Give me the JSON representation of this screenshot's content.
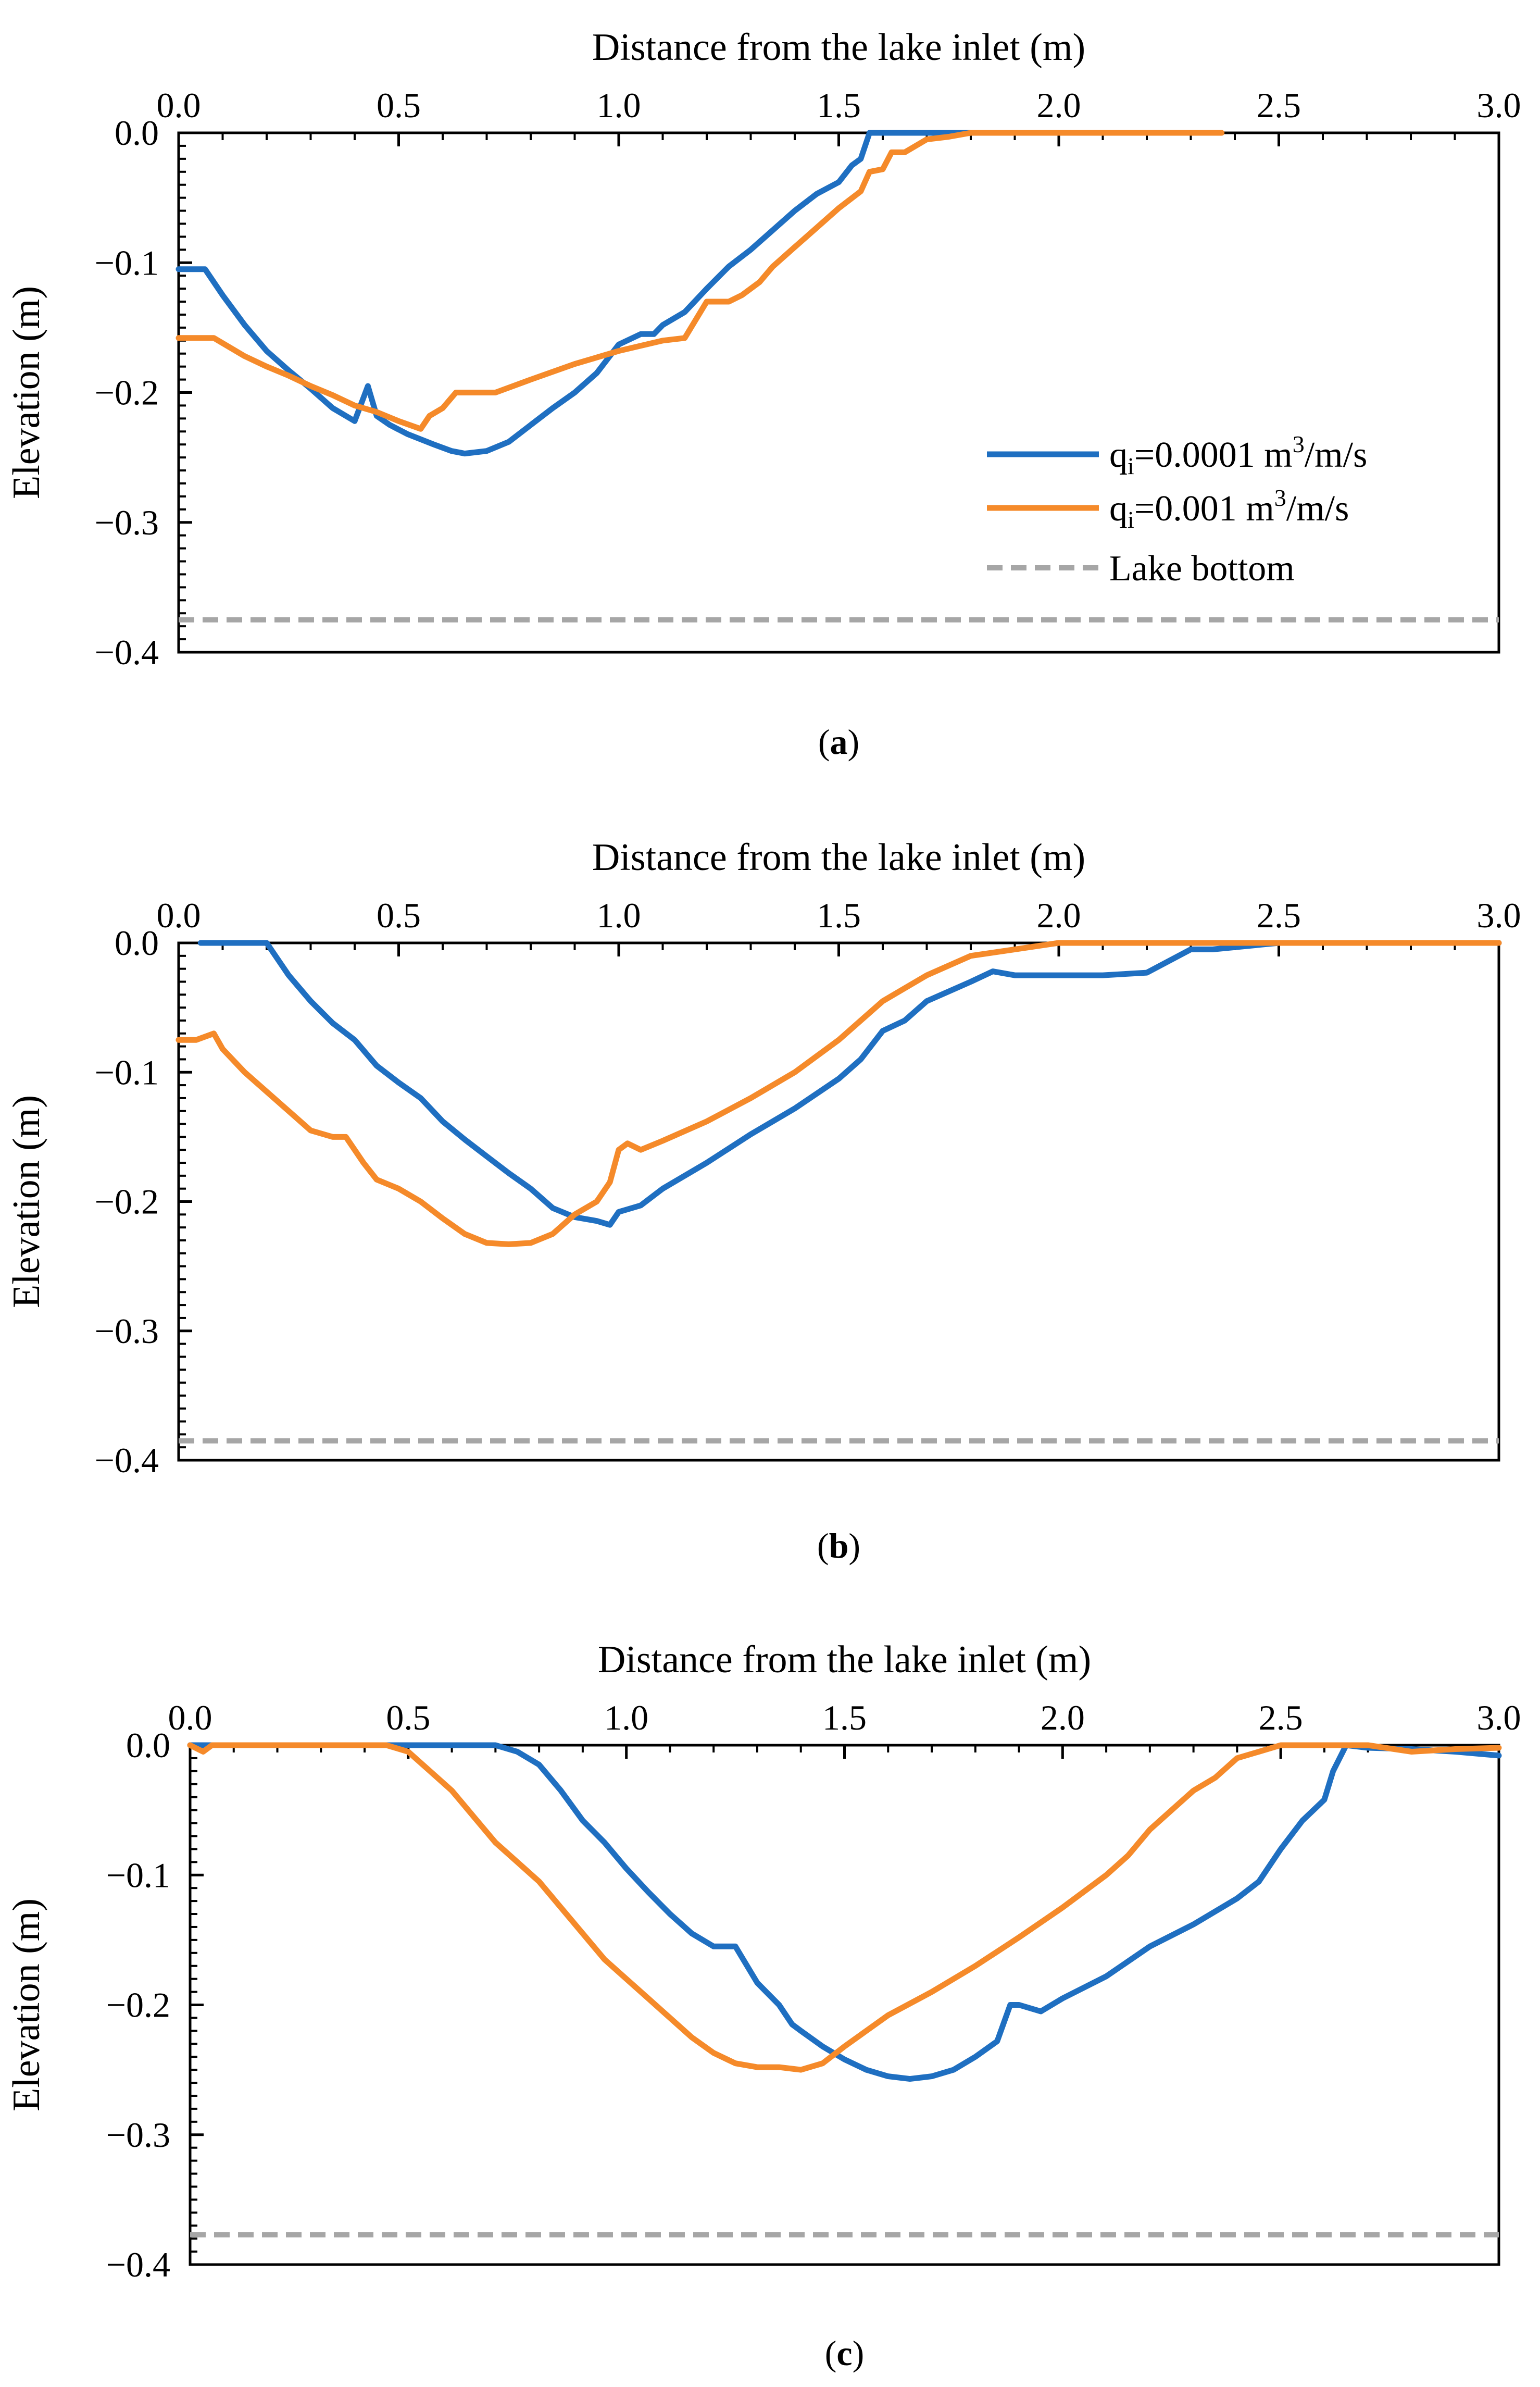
{
  "colors": {
    "series_blue": "#1f6fc1",
    "series_orange": "#f58a2a",
    "lake_bottom": "#a6a6a6",
    "axis": "#000000"
  },
  "chart_data": [
    {
      "type": "line",
      "panel_label": "a",
      "xlabel": "Distance from the lake inlet (m)",
      "ylabel": "Elevation (m)",
      "xlim": [
        0,
        3.0
      ],
      "ylim": [
        -0.4,
        0.0
      ],
      "x_ticks": [
        "0.0",
        "0.5",
        "1.0",
        "1.5",
        "2.0",
        "2.5",
        "3.0"
      ],
      "y_ticks": [
        "0.0",
        "-0.1",
        "-0.2",
        "-0.3",
        "-0.4"
      ],
      "x_axis_position": "top",
      "grid": false,
      "legend": {
        "position": "right",
        "entries": [
          {
            "sym": "q",
            "sub": "i",
            "text": "=0.0001 m",
            "sup": "3",
            "tail": "/m/s",
            "color_key": "series_blue",
            "dash": false
          },
          {
            "sym": "q",
            "sub": "i",
            "text": "=0.001 m",
            "sup": "3",
            "tail": "/m/s",
            "color_key": "series_orange",
            "dash": false
          },
          {
            "text": "Lake bottom",
            "color_key": "lake_bottom",
            "dash": true
          }
        ]
      },
      "series": [
        {
          "color_key": "series_blue",
          "x": [
            0.0,
            0.06,
            0.1,
            0.15,
            0.2,
            0.25,
            0.3,
            0.35,
            0.4,
            0.43,
            0.45,
            0.48,
            0.52,
            0.58,
            0.62,
            0.65,
            0.7,
            0.75,
            0.8,
            0.85,
            0.9,
            0.95,
            1.0,
            1.05,
            1.08,
            1.1,
            1.15,
            1.2,
            1.25,
            1.3,
            1.35,
            1.4,
            1.45,
            1.5,
            1.53,
            1.55,
            1.57,
            1.6,
            1.7,
            1.8
          ],
          "y": [
            -0.105,
            -0.105,
            -0.125,
            -0.148,
            -0.168,
            -0.183,
            -0.197,
            -0.212,
            -0.222,
            -0.195,
            -0.218,
            -0.225,
            -0.232,
            -0.24,
            -0.245,
            -0.247,
            -0.245,
            -0.238,
            -0.225,
            -0.212,
            -0.2,
            -0.185,
            -0.163,
            -0.155,
            -0.155,
            -0.148,
            -0.138,
            -0.12,
            -0.103,
            -0.09,
            -0.075,
            -0.06,
            -0.047,
            -0.038,
            -0.025,
            -0.02,
            0.0,
            0.0,
            0.0,
            0.0
          ]
        },
        {
          "color_key": "series_orange",
          "x": [
            0.0,
            0.08,
            0.15,
            0.2,
            0.25,
            0.3,
            0.35,
            0.4,
            0.45,
            0.5,
            0.55,
            0.57,
            0.6,
            0.63,
            0.68,
            0.72,
            0.8,
            0.9,
            1.0,
            1.1,
            1.15,
            1.2,
            1.25,
            1.28,
            1.32,
            1.35,
            1.4,
            1.45,
            1.5,
            1.55,
            1.57,
            1.6,
            1.62,
            1.65,
            1.7,
            1.75,
            1.8,
            2.2,
            2.35,
            2.37
          ],
          "y": [
            -0.158,
            -0.158,
            -0.172,
            -0.18,
            -0.187,
            -0.195,
            -0.202,
            -0.21,
            -0.215,
            -0.222,
            -0.228,
            -0.218,
            -0.212,
            -0.2,
            -0.2,
            -0.2,
            -0.19,
            -0.178,
            -0.168,
            -0.16,
            -0.158,
            -0.13,
            -0.13,
            -0.125,
            -0.115,
            -0.103,
            -0.088,
            -0.073,
            -0.058,
            -0.045,
            -0.03,
            -0.028,
            -0.015,
            -0.015,
            -0.005,
            -0.003,
            0.0,
            0.0,
            0.0,
            0.0
          ]
        },
        {
          "color_key": "lake_bottom",
          "x": [
            0.0,
            3.0
          ],
          "y": [
            -0.375,
            -0.375
          ]
        }
      ]
    },
    {
      "type": "line",
      "panel_label": "b",
      "xlabel": "Distance from the lake inlet (m)",
      "ylabel": "Elevation (m)",
      "xlim": [
        0,
        3.0
      ],
      "ylim": [
        -0.4,
        0.0
      ],
      "x_ticks": [
        "0.0",
        "0.5",
        "1.0",
        "1.5",
        "2.0",
        "2.5",
        "3.0"
      ],
      "y_ticks": [
        "0.0",
        "-0.1",
        "-0.2",
        "-0.3",
        "-0.4"
      ],
      "x_axis_position": "top",
      "grid": false,
      "series": [
        {
          "color_key": "series_blue",
          "x": [
            0.05,
            0.1,
            0.2,
            0.22,
            0.25,
            0.3,
            0.35,
            0.4,
            0.45,
            0.5,
            0.55,
            0.6,
            0.65,
            0.7,
            0.75,
            0.8,
            0.85,
            0.9,
            0.95,
            0.98,
            1.0,
            1.05,
            1.1,
            1.2,
            1.3,
            1.4,
            1.5,
            1.55,
            1.6,
            1.65,
            1.7,
            1.8,
            1.85,
            1.9,
            2.0,
            2.1,
            2.2,
            2.3,
            2.35,
            2.5,
            2.6,
            3.0
          ],
          "y": [
            0.0,
            0.0,
            0.0,
            -0.01,
            -0.025,
            -0.045,
            -0.062,
            -0.075,
            -0.095,
            -0.108,
            -0.12,
            -0.138,
            -0.152,
            -0.165,
            -0.178,
            -0.19,
            -0.205,
            -0.212,
            -0.215,
            -0.218,
            -0.208,
            -0.203,
            -0.19,
            -0.17,
            -0.148,
            -0.128,
            -0.105,
            -0.09,
            -0.068,
            -0.06,
            -0.045,
            -0.03,
            -0.022,
            -0.025,
            -0.025,
            -0.025,
            -0.023,
            -0.005,
            -0.005,
            0.0,
            0.0,
            0.0
          ]
        },
        {
          "color_key": "series_orange",
          "x": [
            0.0,
            0.04,
            0.08,
            0.1,
            0.15,
            0.2,
            0.25,
            0.3,
            0.35,
            0.38,
            0.42,
            0.45,
            0.5,
            0.55,
            0.6,
            0.65,
            0.7,
            0.75,
            0.8,
            0.85,
            0.9,
            0.95,
            0.98,
            1.0,
            1.02,
            1.05,
            1.1,
            1.2,
            1.3,
            1.4,
            1.5,
            1.6,
            1.7,
            1.8,
            1.9,
            2.0,
            2.2,
            3.0
          ],
          "y": [
            -0.075,
            -0.075,
            -0.07,
            -0.082,
            -0.1,
            -0.115,
            -0.13,
            -0.145,
            -0.15,
            -0.15,
            -0.17,
            -0.183,
            -0.19,
            -0.2,
            -0.213,
            -0.225,
            -0.232,
            -0.233,
            -0.232,
            -0.225,
            -0.21,
            -0.2,
            -0.185,
            -0.16,
            -0.155,
            -0.16,
            -0.153,
            -0.138,
            -0.12,
            -0.1,
            -0.075,
            -0.045,
            -0.025,
            -0.01,
            -0.005,
            0.0,
            0.0,
            0.0
          ]
        },
        {
          "color_key": "lake_bottom",
          "x": [
            0.0,
            3.0
          ],
          "y": [
            -0.385,
            -0.385
          ]
        }
      ]
    },
    {
      "type": "line",
      "panel_label": "c",
      "xlabel": "Distance from the lake inlet (m)",
      "ylabel": "Elevation (m)",
      "xlim": [
        0,
        3.0
      ],
      "ylim": [
        -0.4,
        0.0
      ],
      "x_ticks": [
        "0.0",
        "0.5",
        "1.0",
        "1.5",
        "2.0",
        "2.5",
        "3.0"
      ],
      "y_ticks": [
        "0.0",
        "-0.1",
        "-0.2",
        "-0.3",
        "-0.4"
      ],
      "x_axis_position": "top",
      "grid": false,
      "series": [
        {
          "color_key": "series_blue",
          "x": [
            0.0,
            0.2,
            0.4,
            0.6,
            0.7,
            0.75,
            0.8,
            0.85,
            0.9,
            0.95,
            1.0,
            1.05,
            1.1,
            1.15,
            1.2,
            1.25,
            1.3,
            1.35,
            1.38,
            1.4,
            1.45,
            1.5,
            1.55,
            1.6,
            1.65,
            1.7,
            1.75,
            1.8,
            1.85,
            1.88,
            1.9,
            1.95,
            2.0,
            2.1,
            2.2,
            2.3,
            2.4,
            2.45,
            2.5,
            2.55,
            2.6,
            2.62,
            2.65,
            2.7,
            2.8,
            2.9,
            3.0
          ],
          "y": [
            0.0,
            0.0,
            0.0,
            0.0,
            0.0,
            -0.005,
            -0.015,
            -0.035,
            -0.058,
            -0.075,
            -0.095,
            -0.113,
            -0.13,
            -0.145,
            -0.155,
            -0.155,
            -0.183,
            -0.2,
            -0.215,
            -0.22,
            -0.232,
            -0.242,
            -0.25,
            -0.255,
            -0.257,
            -0.255,
            -0.25,
            -0.24,
            -0.228,
            -0.2,
            -0.2,
            -0.205,
            -0.195,
            -0.178,
            -0.155,
            -0.138,
            -0.118,
            -0.105,
            -0.08,
            -0.058,
            -0.042,
            -0.02,
            0.0,
            -0.002,
            -0.003,
            -0.005,
            -0.008
          ]
        },
        {
          "color_key": "series_orange",
          "x": [
            0.0,
            0.03,
            0.05,
            0.2,
            0.45,
            0.5,
            0.55,
            0.6,
            0.65,
            0.7,
            0.75,
            0.8,
            0.85,
            0.9,
            0.95,
            1.0,
            1.05,
            1.1,
            1.15,
            1.2,
            1.25,
            1.3,
            1.35,
            1.4,
            1.45,
            1.5,
            1.55,
            1.6,
            1.7,
            1.8,
            1.9,
            2.0,
            2.1,
            2.15,
            2.2,
            2.3,
            2.35,
            2.4,
            2.5,
            2.6,
            2.7,
            2.8,
            2.9,
            3.0
          ],
          "y": [
            0.0,
            -0.005,
            0.0,
            0.0,
            0.0,
            -0.005,
            -0.02,
            -0.035,
            -0.055,
            -0.075,
            -0.09,
            -0.105,
            -0.125,
            -0.145,
            -0.165,
            -0.18,
            -0.195,
            -0.21,
            -0.225,
            -0.237,
            -0.245,
            -0.248,
            -0.248,
            -0.25,
            -0.245,
            -0.232,
            -0.22,
            -0.208,
            -0.19,
            -0.17,
            -0.148,
            -0.125,
            -0.1,
            -0.085,
            -0.065,
            -0.035,
            -0.025,
            -0.01,
            0.0,
            0.0,
            0.0,
            -0.005,
            -0.003,
            -0.002
          ]
        },
        {
          "color_key": "lake_bottom",
          "x": [
            0.0,
            3.0
          ],
          "y": [
            -0.377,
            -0.377
          ]
        }
      ]
    }
  ]
}
